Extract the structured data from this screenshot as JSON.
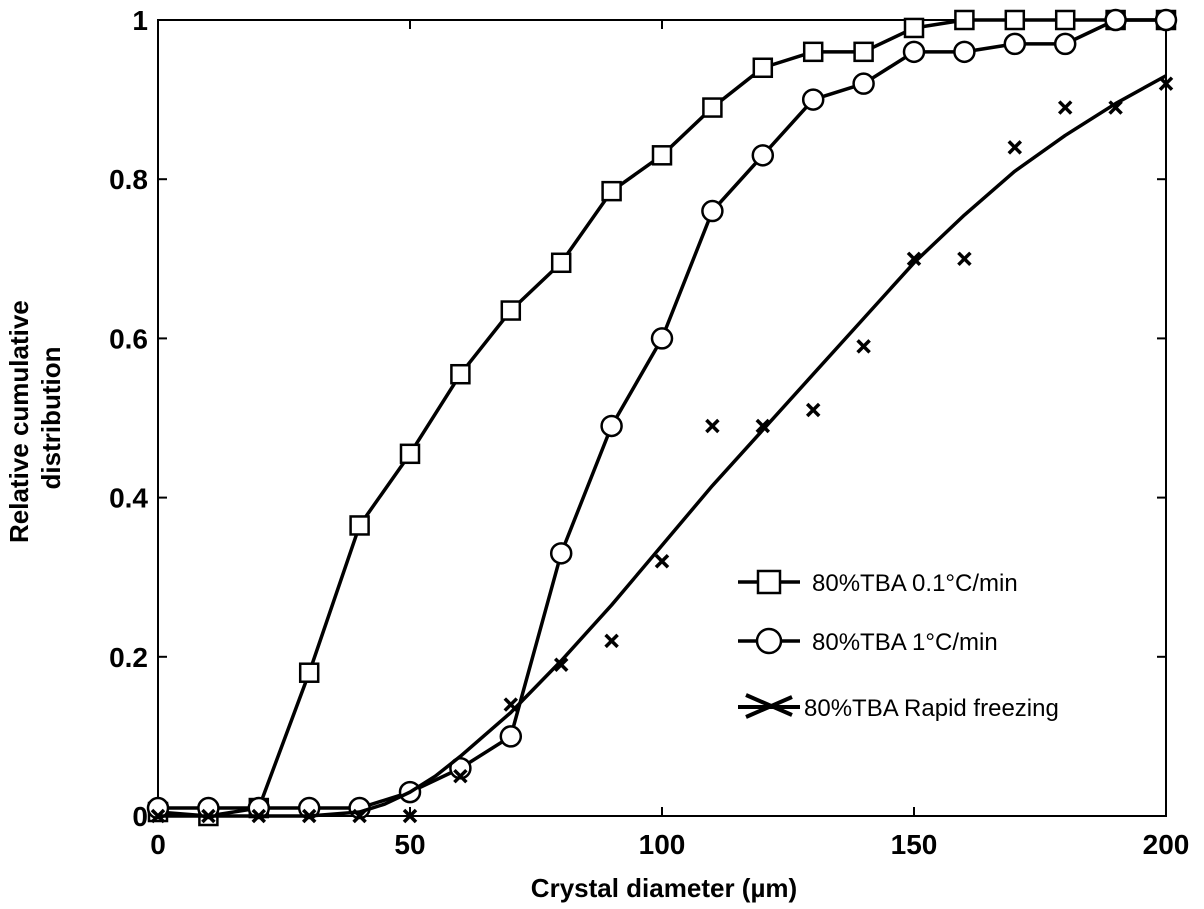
{
  "chart_data": {
    "type": "line",
    "title": "",
    "xlabel": "Crystal diameter (µm)",
    "ylabel_lines": [
      "Relative cumulative",
      "distribution"
    ],
    "xlim": [
      0,
      200
    ],
    "ylim": [
      0,
      1
    ],
    "xticks": [
      {
        "value": 0,
        "label": "0"
      },
      {
        "value": 50,
        "label": "50"
      },
      {
        "value": 100,
        "label": "100"
      },
      {
        "value": 150,
        "label": "150"
      },
      {
        "value": 200,
        "label": "200"
      }
    ],
    "yticks": [
      {
        "value": 0,
        "label": "0"
      },
      {
        "value": 0.2,
        "label": "0.2"
      },
      {
        "value": 0.4,
        "label": "0.4"
      },
      {
        "value": 0.6,
        "label": "0.6"
      },
      {
        "value": 0.8,
        "label": "0.8"
      },
      {
        "value": 1,
        "label": "1"
      }
    ],
    "grid": false,
    "legend_position": "right-middle",
    "series": [
      {
        "name": "80%TBA  0.1°C/min",
        "marker": "square",
        "line": "connect",
        "x": [
          0,
          10,
          20,
          30,
          40,
          50,
          60,
          70,
          80,
          90,
          100,
          110,
          120,
          130,
          140,
          150,
          160,
          170,
          180,
          190,
          200
        ],
        "y": [
          0.005,
          0.0,
          0.01,
          0.18,
          0.365,
          0.455,
          0.555,
          0.635,
          0.695,
          0.785,
          0.83,
          0.89,
          0.94,
          0.96,
          0.96,
          0.99,
          1.0,
          1.0,
          1.0,
          1.0,
          1.0
        ]
      },
      {
        "name": "80%TBA  1°C/min",
        "marker": "circle",
        "line": "connect",
        "x": [
          0,
          10,
          20,
          30,
          40,
          50,
          60,
          70,
          80,
          90,
          100,
          110,
          120,
          130,
          140,
          150,
          160,
          170,
          180,
          190,
          200
        ],
        "y": [
          0.01,
          0.01,
          0.01,
          0.01,
          0.01,
          0.03,
          0.06,
          0.1,
          0.33,
          0.49,
          0.6,
          0.76,
          0.83,
          0.9,
          0.92,
          0.96,
          0.96,
          0.97,
          0.97,
          1.0,
          1.0
        ]
      },
      {
        "name": "80%TBA  Rapid freezing",
        "marker": "x",
        "line": "fit",
        "x": [
          0,
          10,
          20,
          30,
          40,
          50,
          60,
          70,
          80,
          90,
          100,
          110,
          120,
          130,
          140,
          150,
          160,
          170,
          180,
          190,
          200
        ],
        "y": [
          0.0,
          0.0,
          0.0,
          0.0,
          0.0,
          0.0,
          0.05,
          0.14,
          0.19,
          0.22,
          0.32,
          0.49,
          0.49,
          0.51,
          0.59,
          0.7,
          0.7,
          0.84,
          0.89,
          0.89,
          0.92
        ],
        "fit_x": [
          0,
          10,
          20,
          30,
          40,
          45,
          50,
          55,
          60,
          70,
          80,
          90,
          100,
          110,
          120,
          130,
          140,
          150,
          160,
          170,
          180,
          190,
          200
        ],
        "fit_y": [
          0.0,
          0.0,
          0.0,
          0.0,
          0.005,
          0.015,
          0.03,
          0.05,
          0.075,
          0.13,
          0.195,
          0.265,
          0.34,
          0.415,
          0.485,
          0.555,
          0.625,
          0.695,
          0.755,
          0.81,
          0.855,
          0.895,
          0.93
        ]
      }
    ]
  }
}
